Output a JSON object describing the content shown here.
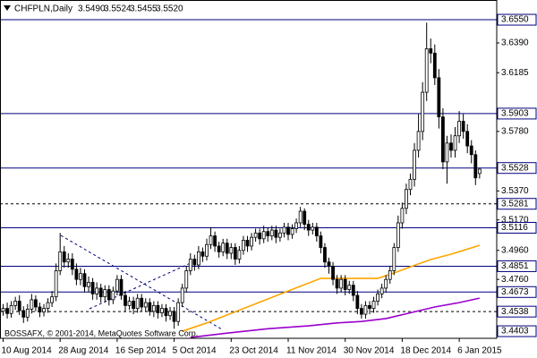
{
  "chart_data": {
    "type": "candlestick",
    "title": "CHFPLN,Daily",
    "header_values": [
      "3.5490",
      "3.5524",
      "3.5455",
      "3.5520"
    ],
    "watermark": "BOSSAFX, © 2001-2014, MetaQuotes Software Corp.",
    "categories": [
      "10 Aug 2014",
      null,
      null,
      null,
      null,
      null,
      null,
      null,
      null,
      null,
      null,
      null,
      null,
      null,
      "28 Aug 2014",
      null,
      null,
      null,
      null,
      null,
      null,
      null,
      null,
      null,
      null,
      null,
      null,
      null,
      "16 Sep 2014",
      null,
      null,
      null,
      null,
      null,
      null,
      null,
      null,
      null,
      null,
      null,
      null,
      null,
      "5 Oct 2014",
      null,
      null,
      null,
      null,
      null,
      null,
      null,
      null,
      null,
      null,
      null,
      null,
      null,
      "23 Oct 2014",
      null,
      null,
      null,
      null,
      null,
      null,
      null,
      null,
      null,
      null,
      null,
      null,
      null,
      "11 Nov 2014",
      null,
      null,
      null,
      null,
      null,
      null,
      null,
      null,
      null,
      null,
      null,
      null,
      null,
      "30 Nov 2014",
      null,
      null,
      null,
      null,
      null,
      null,
      null,
      null,
      null,
      null,
      null,
      null,
      null,
      "18 Dec 2014",
      null,
      null,
      null,
      null,
      null,
      null,
      null,
      null,
      null,
      null,
      null,
      null,
      null,
      "6 Jan 2015",
      null,
      null,
      null,
      null,
      null
    ],
    "open": [
      3.454,
      3.456,
      3.4525,
      3.458,
      3.461,
      3.4545,
      3.45,
      3.4555,
      3.462,
      3.457,
      3.4535,
      3.456,
      3.46,
      3.464,
      3.482,
      3.495,
      3.488,
      3.49,
      3.483,
      3.476,
      3.48,
      3.471,
      3.474,
      3.466,
      3.47,
      3.464,
      3.469,
      3.462,
      3.468,
      3.476,
      3.465,
      3.458,
      3.461,
      3.456,
      3.463,
      3.457,
      3.46,
      3.454,
      3.458,
      3.453,
      3.456,
      3.451,
      3.454,
      3.447,
      3.46,
      3.47,
      3.482,
      3.49,
      3.486,
      3.495,
      3.492,
      3.5,
      3.506,
      3.499,
      3.495,
      3.501,
      3.494,
      3.498,
      3.49,
      3.496,
      3.503,
      3.499,
      3.505,
      3.508,
      3.504,
      3.509,
      3.506,
      3.51,
      3.505,
      3.508,
      3.512,
      3.507,
      3.511,
      3.515,
      3.523,
      3.514,
      3.51,
      3.512,
      3.506,
      3.498,
      3.488,
      3.485,
      3.476,
      3.47,
      3.476,
      3.469,
      3.472,
      3.465,
      3.456,
      3.452,
      3.458,
      3.456,
      3.461,
      3.466,
      3.47,
      3.476,
      3.482,
      3.498,
      3.515,
      3.525,
      3.538,
      3.545,
      3.565,
      3.578,
      3.605,
      3.635,
      3.632,
      3.615,
      3.588,
      3.557,
      3.57,
      3.565,
      3.575,
      3.585,
      3.578,
      3.568,
      3.562,
      3.549
    ],
    "high": [
      3.459,
      3.46,
      3.461,
      3.464,
      3.465,
      3.4575,
      3.459,
      3.466,
      3.465,
      3.46,
      3.459,
      3.463,
      3.468,
      3.487,
      3.508,
      3.499,
      3.494,
      3.494,
      3.487,
      3.484,
      3.483,
      3.478,
      3.477,
      3.474,
      3.473,
      3.472,
      3.472,
      3.471,
      3.479,
      3.479,
      3.468,
      3.464,
      3.464,
      3.466,
      3.466,
      3.463,
      3.463,
      3.461,
      3.461,
      3.459,
      3.459,
      3.457,
      3.457,
      3.463,
      3.473,
      3.485,
      3.494,
      3.493,
      3.499,
      3.498,
      3.504,
      3.512,
      3.509,
      3.502,
      3.504,
      3.504,
      3.501,
      3.501,
      3.499,
      3.506,
      3.506,
      3.508,
      3.511,
      3.511,
      3.513,
      3.512,
      3.513,
      3.513,
      3.511,
      3.515,
      3.515,
      3.514,
      3.518,
      3.526,
      3.525,
      3.517,
      3.515,
      3.515,
      3.509,
      3.501,
      3.491,
      3.488,
      3.479,
      3.479,
      3.479,
      3.475,
      3.475,
      3.468,
      3.459,
      3.461,
      3.461,
      3.464,
      3.469,
      3.473,
      3.479,
      3.485,
      3.501,
      3.52,
      3.529,
      3.542,
      3.549,
      3.57,
      3.59,
      3.612,
      3.653,
      3.642,
      3.638,
      3.621,
      3.594,
      3.575,
      3.576,
      3.581,
      3.592,
      3.59,
      3.583,
      3.572,
      3.565,
      3.5524
    ],
    "low": [
      3.451,
      3.449,
      3.4495,
      3.455,
      3.4515,
      3.446,
      3.447,
      3.4525,
      3.454,
      3.45,
      3.4505,
      3.453,
      3.457,
      3.461,
      3.479,
      3.484,
      3.484,
      3.479,
      3.472,
      3.472,
      3.467,
      3.467,
      3.462,
      3.462,
      3.46,
      3.46,
      3.458,
      3.459,
      3.465,
      3.462,
      3.454,
      3.455,
      3.452,
      3.453,
      3.454,
      3.454,
      3.451,
      3.45,
      3.449,
      3.45,
      3.447,
      3.448,
      3.442,
      3.444,
      3.457,
      3.467,
      3.479,
      3.482,
      3.483,
      3.488,
      3.489,
      3.497,
      3.495,
      3.491,
      3.492,
      3.49,
      3.49,
      3.486,
      3.487,
      3.493,
      3.495,
      3.496,
      3.502,
      3.5,
      3.501,
      3.502,
      3.503,
      3.501,
      3.502,
      3.505,
      3.503,
      3.504,
      3.508,
      3.512,
      3.51,
      3.506,
      3.507,
      3.502,
      3.494,
      3.484,
      3.48,
      3.472,
      3.466,
      3.467,
      3.465,
      3.466,
      3.461,
      3.452,
      3.449,
      3.449,
      3.452,
      3.453,
      3.458,
      3.463,
      3.467,
      3.473,
      3.479,
      3.495,
      3.511,
      3.521,
      3.534,
      3.54,
      3.56,
      3.572,
      3.599,
      3.625,
      3.61,
      3.58,
      3.552,
      3.542,
      3.56,
      3.56,
      3.57,
      3.573,
      3.563,
      3.556,
      3.541,
      3.5455
    ],
    "close": [
      3.456,
      3.4525,
      3.458,
      3.461,
      3.4545,
      3.45,
      3.4555,
      3.462,
      3.457,
      3.4535,
      3.456,
      3.46,
      3.464,
      3.482,
      3.495,
      3.488,
      3.49,
      3.483,
      3.476,
      3.48,
      3.471,
      3.474,
      3.466,
      3.47,
      3.464,
      3.469,
      3.462,
      3.468,
      3.476,
      3.465,
      3.458,
      3.461,
      3.456,
      3.463,
      3.457,
      3.46,
      3.454,
      3.458,
      3.453,
      3.456,
      3.451,
      3.454,
      3.447,
      3.46,
      3.47,
      3.482,
      3.49,
      3.486,
      3.495,
      3.492,
      3.5,
      3.506,
      3.499,
      3.495,
      3.501,
      3.494,
      3.498,
      3.49,
      3.496,
      3.503,
      3.499,
      3.505,
      3.508,
      3.504,
      3.509,
      3.506,
      3.51,
      3.505,
      3.508,
      3.512,
      3.507,
      3.511,
      3.515,
      3.523,
      3.514,
      3.51,
      3.512,
      3.506,
      3.498,
      3.488,
      3.485,
      3.476,
      3.47,
      3.476,
      3.469,
      3.472,
      3.465,
      3.456,
      3.452,
      3.458,
      3.456,
      3.461,
      3.466,
      3.47,
      3.476,
      3.482,
      3.498,
      3.515,
      3.525,
      3.538,
      3.545,
      3.565,
      3.578,
      3.605,
      3.635,
      3.632,
      3.615,
      3.588,
      3.557,
      3.57,
      3.565,
      3.575,
      3.585,
      3.578,
      3.568,
      3.562,
      3.546,
      3.552
    ],
    "bull_color": "#ffffff",
    "bear_color": "#000000",
    "wick_color": "#000000",
    "moving_averages": [
      {
        "color": "#ffa500",
        "x": [
          44,
          50,
          60,
          70,
          78,
          85,
          92,
          96,
          100,
          105,
          110,
          117
        ],
        "values": [
          3.4403,
          3.446,
          3.457,
          3.468,
          3.4767,
          3.4767,
          3.4767,
          3.4804,
          3.4847,
          3.4897,
          3.4934,
          3.4995
        ]
      },
      {
        "color": "#9900cc",
        "x": [
          46,
          55,
          65,
          75,
          82,
          88,
          94,
          100,
          106,
          112,
          117
        ],
        "values": [
          3.436,
          3.439,
          3.442,
          3.444,
          3.446,
          3.447,
          3.449,
          3.453,
          3.457,
          3.46,
          3.4631
        ]
      }
    ],
    "levels": [
      {
        "value": 3.655,
        "label": "3.6550",
        "line": "solid"
      },
      {
        "value": 3.5903,
        "line": "solid"
      },
      {
        "value": 3.5528,
        "line": "solid"
      },
      {
        "value": 3.5281,
        "line": "dashed"
      },
      {
        "value": 3.5116,
        "line": "solid"
      },
      {
        "value": 3.4851,
        "line": "solid"
      },
      {
        "value": 3.4673,
        "line": "solid"
      },
      {
        "value": 3.4538,
        "line": "dashed"
      },
      {
        "value": 3.4403,
        "line": "none"
      }
    ],
    "level_color": "#000080",
    "ylim": [
      3.4354,
      3.6686
    ],
    "yticks": [
      {
        "value": 3.639,
        "label": "3.6390"
      },
      3.6185,
      {
        "value": 3.578,
        "label": "3.5780"
      },
      {
        "value": 3.537,
        "label": "3.5370"
      },
      {
        "value": 3.517,
        "label": "3.5170"
      },
      {
        "value": 3.496,
        "label": "3.4960"
      },
      {
        "value": 3.476,
        "label": "3.4760"
      }
    ]
  }
}
